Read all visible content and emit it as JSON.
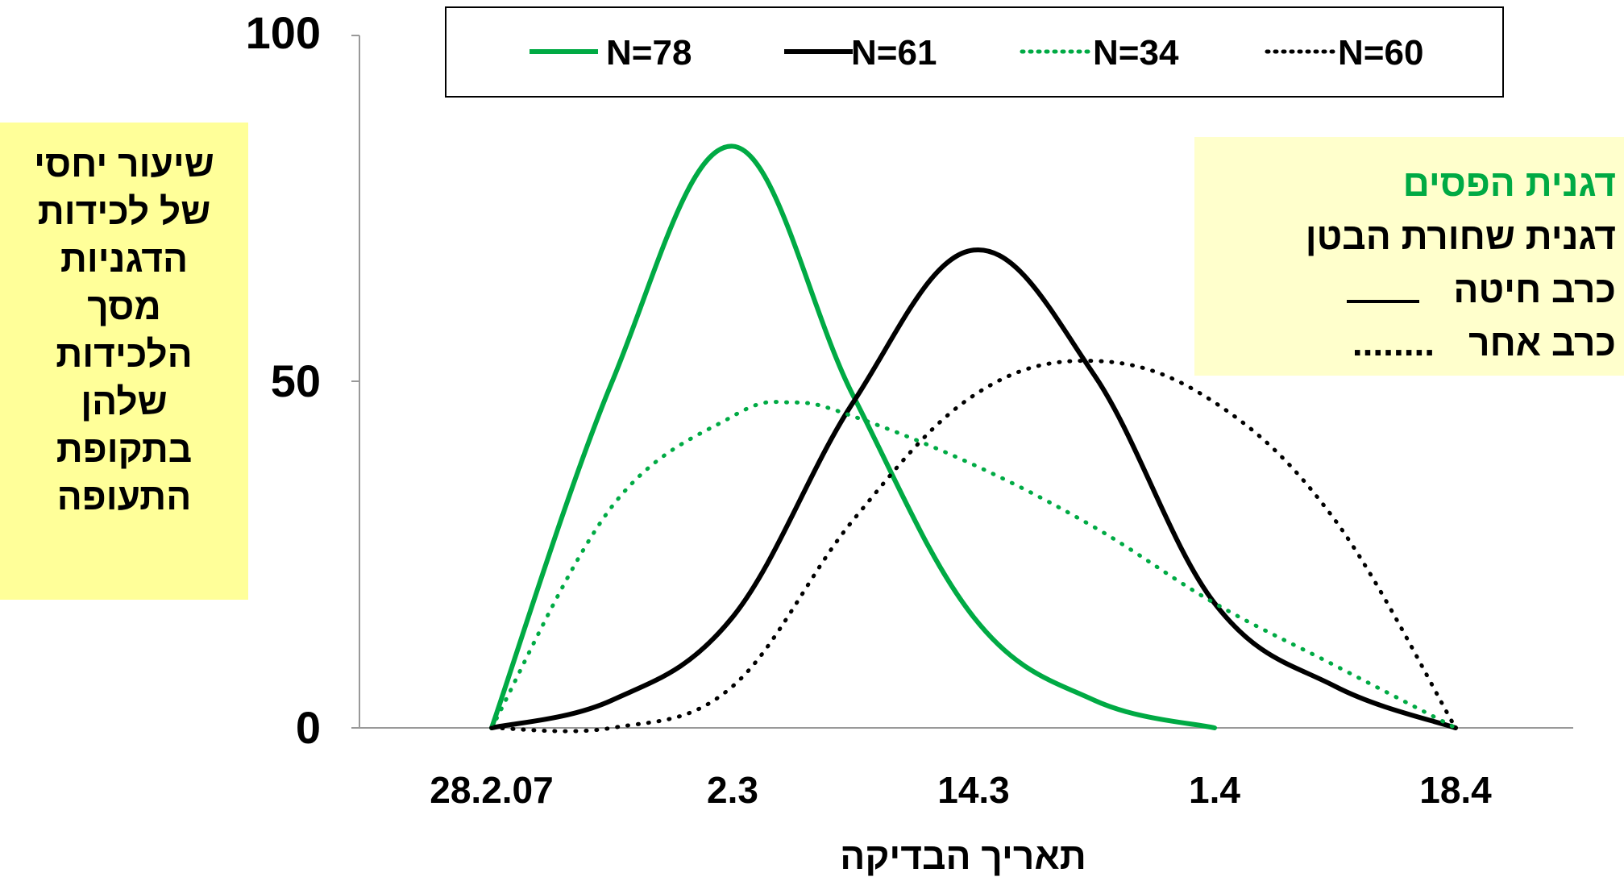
{
  "chart_data": {
    "type": "line",
    "title": "",
    "xlabel": "תאריך הבדיקה",
    "ylabel_lines": [
      "שיעור יחסי",
      "של לכידות",
      "הדגניות",
      "מסך",
      "הלכידות",
      "שלהן",
      "בתקופת",
      "התעופה"
    ],
    "ylim": [
      0,
      100
    ],
    "y_ticks": [
      "0",
      "50",
      "100"
    ],
    "categories": [
      "28.2.07",
      "2.3",
      "14.3",
      "1.4",
      "18.4"
    ],
    "series": [
      {
        "name": "N=78",
        "color": "#00aa44",
        "style": "solid",
        "x": [
          0,
          0.5,
          1,
          1.5,
          2,
          2.5,
          3
        ],
        "values": [
          0,
          50,
          84,
          48,
          16,
          4,
          0
        ]
      },
      {
        "name": "N=61",
        "color": "#000000",
        "style": "solid",
        "x": [
          0,
          0.5,
          1,
          1.5,
          2,
          2.5,
          3,
          3.5,
          4
        ],
        "values": [
          0,
          4,
          16,
          47,
          69,
          51,
          18,
          6,
          0
        ]
      },
      {
        "name": "N=34",
        "color": "#00aa44",
        "style": "dotted",
        "x": [
          0,
          0.5,
          1,
          1.25,
          1.5,
          2,
          2.5,
          3,
          3.5,
          4
        ],
        "values": [
          0,
          32,
          45,
          47,
          45,
          38,
          29,
          18,
          9,
          0
        ]
      },
      {
        "name": "N=60",
        "color": "#000000",
        "style": "dotted",
        "x": [
          0,
          0.5,
          1,
          1.5,
          2,
          2.5,
          3,
          3.5,
          4
        ],
        "values": [
          0,
          0,
          6,
          30,
          48,
          53,
          47,
          30,
          0
        ]
      }
    ],
    "legend_position": "top",
    "grid": false
  },
  "species_key": {
    "green_label": "דגנית הפסים",
    "black_label": "דגנית שחורת הבטן",
    "solid_label": "כרב חיטה",
    "dotted_label": "כרב אחר",
    "dotted_marker": "........"
  }
}
